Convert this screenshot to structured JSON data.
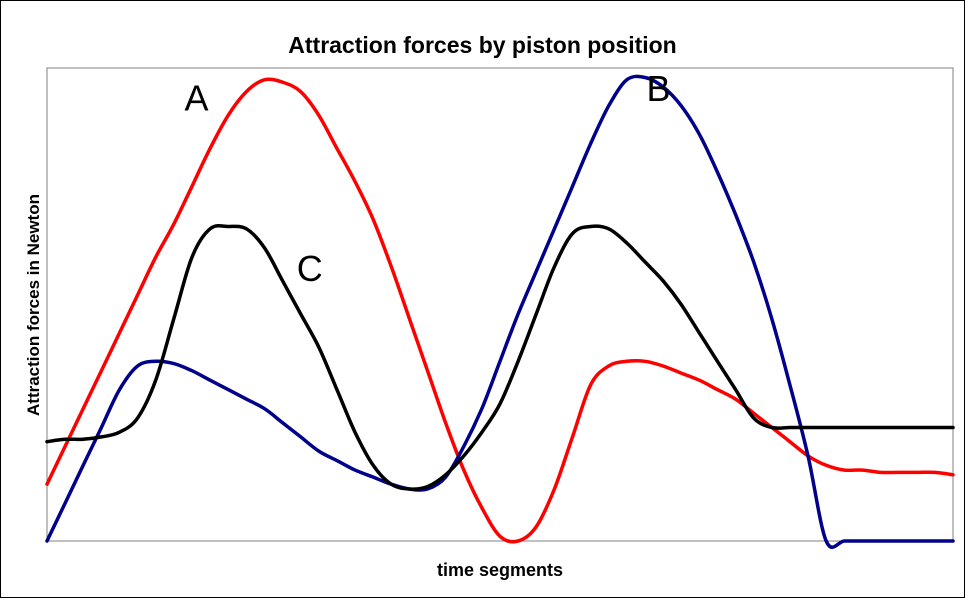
{
  "chart_data": {
    "type": "line",
    "title": "Attraction forces by piston position",
    "xlabel": "time segments",
    "ylabel": "Attraction forces in Newton",
    "grid": false,
    "legend": "none",
    "ylim": [
      0,
      100
    ],
    "x": [
      0,
      2,
      4,
      6,
      8,
      10,
      12,
      14,
      16,
      18,
      20,
      22,
      24,
      26,
      28,
      30,
      32,
      34,
      36,
      38,
      40,
      42,
      44,
      46,
      48,
      50,
      52,
      54,
      56,
      58,
      60,
      62,
      64,
      66,
      68,
      70,
      72,
      74,
      76,
      78,
      80,
      82,
      84,
      86,
      88,
      90,
      92,
      94,
      96,
      98,
      100
    ],
    "series": [
      {
        "name": "A",
        "color": "#ff0000",
        "values": [
          12,
          20,
          28,
          36,
          44,
          52,
          60,
          67,
          75,
          83,
          90,
          95,
          97.5,
          97,
          95,
          90,
          83,
          76,
          68,
          58,
          47,
          36,
          25,
          15,
          7,
          1,
          0,
          3,
          11,
          22,
          33,
          37,
          38,
          38,
          37,
          35.5,
          34,
          32,
          30,
          27,
          24,
          21,
          18,
          16,
          15,
          15,
          14.5,
          14.5,
          14.5,
          14.5,
          14
        ]
      },
      {
        "name": "B",
        "color": "#00008b",
        "values": [
          0,
          8,
          16,
          24,
          32,
          37,
          38,
          37.5,
          36,
          34,
          32,
          30,
          28,
          25,
          22,
          19,
          17,
          15,
          13.5,
          12,
          11,
          11,
          13.5,
          20,
          28,
          38,
          48,
          57,
          66,
          75,
          84,
          92,
          97.5,
          98,
          96,
          92,
          86,
          78,
          69,
          59,
          47,
          33,
          18,
          0,
          0,
          0,
          0,
          0,
          0,
          0,
          0
        ]
      },
      {
        "name": "C",
        "color": "#000000",
        "values": [
          21,
          21.5,
          21.5,
          22,
          23,
          26,
          34,
          47,
          60,
          66,
          66.5,
          66,
          62,
          55,
          48,
          41,
          32,
          23,
          16,
          12,
          11,
          11.5,
          14,
          18,
          23,
          29,
          38,
          48,
          58,
          65,
          66.5,
          66,
          63,
          59,
          55,
          50,
          44,
          38,
          32,
          26,
          24,
          24,
          24,
          24,
          24,
          24,
          24,
          24,
          24,
          24,
          24
        ]
      }
    ],
    "annotations": [
      {
        "text": "A",
        "x": 16.5,
        "y": 93
      },
      {
        "text": "B",
        "x": 67.5,
        "y": 95
      },
      {
        "text": "C",
        "x": 29,
        "y": 57
      }
    ]
  }
}
